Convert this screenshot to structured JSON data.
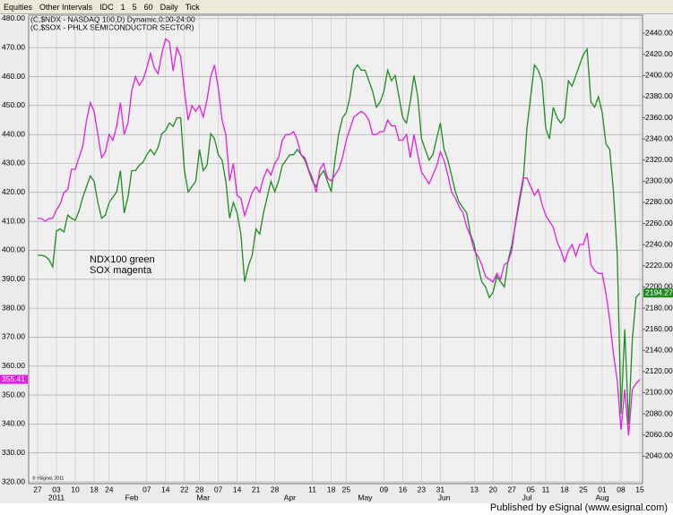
{
  "toolbar": {
    "items": [
      "Equities",
      "Other Intervals",
      "IDC",
      "1",
      "5",
      "60",
      "Daily",
      "Tick"
    ]
  },
  "footer": "Published by eSignal (www.esignal.com)",
  "chart_data": {
    "type": "line",
    "header": [
      "(C,$NDX - NASDAQ 100,D) Dynamic,0:00-24:00",
      "(C,$SOX - PHLX SEMICONDUCTOR SECTOR)"
    ],
    "annotations": [
      "NDX100 green",
      "SOX magenta"
    ],
    "copyright": "© eSignal, 2011",
    "categories": [
      "27",
      null,
      null,
      null,
      null,
      "03",
      null,
      null,
      null,
      null,
      "10",
      null,
      null,
      null,
      null,
      "18",
      null,
      null,
      null,
      "24",
      null,
      null,
      null,
      null,
      null,
      null,
      null,
      null,
      null,
      "07",
      null,
      null,
      null,
      null,
      "14",
      null,
      null,
      null,
      null,
      "22",
      null,
      null,
      null,
      "28",
      null,
      null,
      null,
      null,
      "07",
      null,
      null,
      null,
      null,
      "14",
      null,
      null,
      null,
      null,
      "21",
      null,
      null,
      null,
      null,
      "28",
      null,
      null,
      null,
      null,
      null,
      null,
      null,
      null,
      null,
      "11",
      null,
      null,
      null,
      null,
      "18",
      null,
      null,
      null,
      "25",
      null,
      null,
      null,
      null,
      null,
      null,
      null,
      null,
      null,
      "09",
      null,
      null,
      null,
      null,
      "16",
      null,
      null,
      null,
      null,
      "23",
      null,
      null,
      null,
      null,
      "31",
      null,
      null,
      null,
      null,
      null,
      null,
      null,
      null,
      "13",
      null,
      null,
      null,
      null,
      "20",
      null,
      null,
      null,
      null,
      "27",
      null,
      null,
      null,
      null,
      "05",
      null,
      null,
      null,
      "11",
      null,
      null,
      null,
      null,
      "18",
      null,
      null,
      null,
      null,
      "25",
      null,
      null,
      null,
      null,
      "01",
      null,
      null,
      null,
      null,
      "08",
      null,
      null,
      null,
      null,
      "15"
    ],
    "month_labels": [
      null,
      null,
      null,
      null,
      null,
      "2011",
      null,
      null,
      null,
      null,
      null,
      null,
      null,
      null,
      null,
      null,
      null,
      null,
      null,
      null,
      null,
      null,
      null,
      null,
      null,
      "Feb",
      null,
      null,
      null,
      null,
      null,
      null,
      null,
      null,
      null,
      null,
      null,
      null,
      null,
      null,
      null,
      null,
      null,
      null,
      "Mar",
      null,
      null,
      null,
      null,
      null,
      null,
      null,
      null,
      null,
      null,
      null,
      null,
      null,
      null,
      null,
      null,
      null,
      null,
      null,
      null,
      null,
      null,
      "Apr",
      null,
      null,
      null,
      null,
      null,
      null,
      null,
      null,
      null,
      null,
      null,
      null,
      null,
      null,
      null,
      null,
      null,
      null,
      null,
      "May",
      null,
      null,
      null,
      null,
      null,
      null,
      null,
      null,
      null,
      null,
      null,
      null,
      null,
      null,
      null,
      null,
      null,
      null,
      null,
      null,
      "Jun",
      null,
      null,
      null,
      null,
      null,
      null,
      null,
      null,
      null,
      null,
      null,
      null,
      null,
      null,
      null,
      null,
      null,
      null,
      null,
      null,
      null,
      "Jul",
      null,
      null,
      null,
      null,
      null,
      null,
      null,
      null,
      null,
      null,
      null,
      null,
      null,
      null,
      null,
      null,
      null,
      null,
      null,
      "Aug",
      null,
      null,
      null,
      null,
      null,
      null,
      null,
      null,
      null,
      null
    ],
    "series": [
      {
        "name": "NDX",
        "color": "#1e8c1e",
        "axis": "y2",
        "values": [
          2230,
          2230,
          2229,
          2226,
          2219,
          2253,
          2255,
          2252,
          2268,
          2265,
          2263,
          2272,
          2285,
          2295,
          2305,
          2300,
          2280,
          2265,
          2268,
          2280,
          2285,
          2290,
          2310,
          2270,
          2285,
          2310,
          2310,
          2315,
          2318,
          2325,
          2330,
          2325,
          2332,
          2345,
          2348,
          2355,
          2352,
          2360,
          2360,
          2310,
          2290,
          2295,
          2300,
          2330,
          2310,
          2315,
          2345,
          2340,
          2325,
          2320,
          2300,
          2265,
          2280,
          2270,
          2250,
          2205,
          2220,
          2230,
          2255,
          2250,
          2270,
          2285,
          2300,
          2290,
          2300,
          2315,
          2320,
          2325,
          2325,
          2330,
          2325,
          2320,
          2310,
          2300,
          2295,
          2305,
          2310,
          2300,
          2290,
          2320,
          2345,
          2360,
          2365,
          2380,
          2405,
          2410,
          2405,
          2405,
          2395,
          2385,
          2370,
          2375,
          2385,
          2405,
          2395,
          2400,
          2380,
          2360,
          2355,
          2375,
          2400,
          2380,
          2340,
          2330,
          2320,
          2325,
          2340,
          2355,
          2330,
          2320,
          2305,
          2290,
          2280,
          2275,
          2270,
          2250,
          2240,
          2220,
          2205,
          2200,
          2190,
          2195,
          2210,
          2205,
          2200,
          2225,
          2240,
          2260,
          2280,
          2300,
          2350,
          2380,
          2410,
          2405,
          2395,
          2350,
          2340,
          2370,
          2360,
          2355,
          2360,
          2395,
          2390,
          2400,
          2410,
          2420,
          2425,
          2375,
          2370,
          2380,
          2365,
          2335,
          2330,
          2290,
          2230,
          2080,
          2160,
          2070,
          2150,
          2190,
          2194.27
        ]
      },
      {
        "name": "SOX",
        "color": "#e020e0",
        "axis": "y",
        "values": [
          411,
          411,
          410,
          411,
          411,
          414,
          416,
          420,
          421,
          428,
          428,
          432,
          436,
          445,
          451,
          448,
          440,
          432,
          434,
          440,
          438,
          443,
          451,
          440,
          444,
          455,
          460,
          457,
          459,
          463,
          468,
          463,
          461,
          468,
          473,
          472,
          462,
          470,
          467,
          455,
          445,
          450,
          448,
          450,
          446,
          452,
          460,
          464,
          456,
          445,
          440,
          424,
          430,
          419,
          418,
          412,
          416,
          420,
          422,
          420,
          425,
          428,
          426,
          430,
          432,
          438,
          440,
          440,
          441,
          438,
          433,
          432,
          428,
          425,
          420,
          428,
          430,
          425,
          424,
          426,
          428,
          432,
          438,
          442,
          446,
          447,
          448,
          447,
          445,
          440,
          440,
          441,
          441,
          445,
          443,
          443,
          438,
          438,
          440,
          432,
          440,
          433,
          427,
          425,
          423,
          426,
          429,
          434,
          431,
          426,
          420,
          418,
          415,
          413,
          408,
          405,
          400,
          398,
          395,
          391,
          390,
          389,
          392,
          390,
          395,
          396,
          400,
          410,
          418,
          425,
          425,
          422,
          419,
          421,
          416,
          412,
          410,
          408,
          403,
          400,
          396,
          400,
          402,
          398,
          402,
          402,
          406,
          395,
          393,
          392,
          392,
          385,
          376,
          364,
          355,
          338,
          352,
          336,
          352,
          354,
          355.41
        ]
      }
    ],
    "ylim": [
      319.4,
      481.2
    ],
    "yticks": [
      {
        "value": 320,
        "label": "320.00"
      },
      {
        "value": 330,
        "label": "330.00"
      },
      {
        "value": 340,
        "label": "340.00"
      },
      {
        "value": 350,
        "label": "350.00"
      },
      {
        "value": 360,
        "label": "360.00"
      },
      {
        "value": 370,
        "label": "370.00"
      },
      {
        "value": 380,
        "label": "380.00"
      },
      {
        "value": 390,
        "label": "390.00"
      },
      {
        "value": 400,
        "label": "400.00"
      },
      {
        "value": 410,
        "label": "410.00"
      },
      {
        "value": 420,
        "label": "420.00"
      },
      {
        "value": 430,
        "label": "430.00"
      },
      {
        "value": 440,
        "label": "440.00"
      },
      {
        "value": 450,
        "label": "450.00"
      },
      {
        "value": 460,
        "label": "460.00"
      },
      {
        "value": 470,
        "label": "470.00"
      },
      {
        "value": 480,
        "label": "480.00"
      }
    ],
    "y2lim": [
      2014,
      2457
    ],
    "y2ticks": [
      {
        "value": 2040,
        "label": "2040.00"
      },
      {
        "value": 2060,
        "label": "2060.00"
      },
      {
        "value": 2080,
        "label": "2080.00"
      },
      {
        "value": 2100,
        "label": "2100.00"
      },
      {
        "value": 2120,
        "label": "2120.00"
      },
      {
        "value": 2140,
        "label": "2140.00"
      },
      {
        "value": 2160,
        "label": "2160.00"
      },
      {
        "value": 2180,
        "label": "2180.00"
      },
      {
        "value": 2200,
        "label": "2200.00"
      },
      {
        "value": 2220,
        "label": "2220.00"
      },
      {
        "value": 2240,
        "label": "2240.00"
      },
      {
        "value": 2260,
        "label": "2260.00"
      },
      {
        "value": 2280,
        "label": "2280.00"
      },
      {
        "value": 2300,
        "label": "2300.00"
      },
      {
        "value": 2320,
        "label": "2320.00"
      },
      {
        "value": 2340,
        "label": "2340.00"
      },
      {
        "value": 2360,
        "label": "2360.00"
      },
      {
        "value": 2380,
        "label": "2380.00"
      },
      {
        "value": 2400,
        "label": "2400.00"
      },
      {
        "value": 2420,
        "label": "2420.00"
      },
      {
        "value": 2440,
        "label": "2440.00"
      }
    ],
    "grid": true
  }
}
